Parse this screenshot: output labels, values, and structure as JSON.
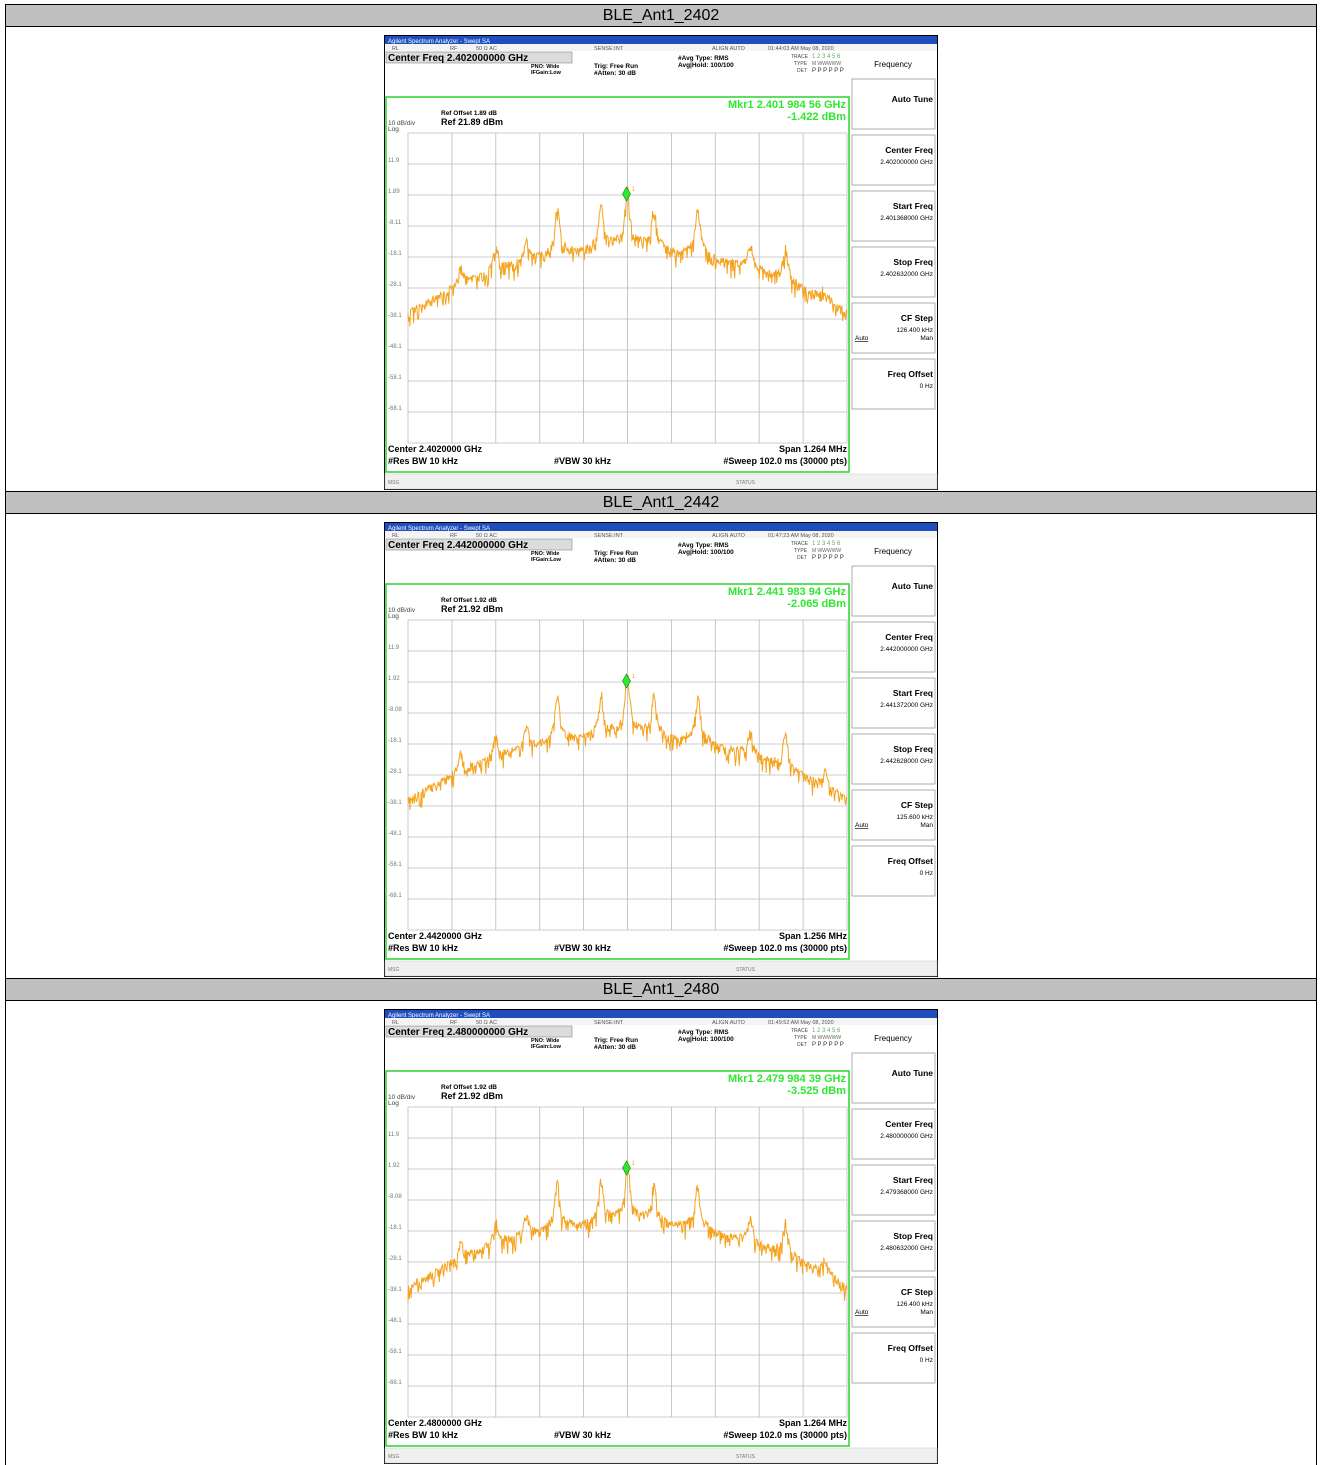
{
  "sections": [
    {
      "title": "BLE_Ant1_2402",
      "analyzer": {
        "window_title": "Agilent Spectrum Analyzer - Swept SA",
        "status_bar": [
          "RL",
          "RF",
          "50 Ω  AC",
          "SENSE:INT",
          "ALIGN AUTO",
          "01:44:03 AM May 08, 2020"
        ],
        "center_freq": "Center Freq 2.402000000 GHz",
        "pno": "PNO: Wide",
        "ifgain": "IFGain:Low",
        "trig": "Trig: Free Run",
        "atten": "#Atten: 30 dB",
        "avg_type": "#Avg Type: RMS",
        "avg_hold": "Avg|Hold: 100/100",
        "trace_label": "TRACE",
        "trace_nums": "1 2 3 4 5 6",
        "type_label": "TYPE",
        "type_val": "M WWWWW",
        "det_label": "DET",
        "det_val": "P P P P P P",
        "marker": "Mkr1 2.401 984 56 GHz",
        "marker_level": "-1.422 dBm",
        "marker_no": "1",
        "ref_offset": "Ref Offset 1.89 dB",
        "scale": "10 dB/div",
        "log": "Log",
        "ref": "Ref 21.89 dBm",
        "y_labels": [
          "11.9",
          "1.89",
          "-8.11",
          "-18.1",
          "-28.1",
          "-38.1",
          "-48.1",
          "-58.1",
          "-68.1"
        ],
        "center": "Center 2.4020000 GHz",
        "span": "Span 1.264 MHz",
        "rbw": "#Res BW 10 kHz",
        "vbw": "#VBW 30 kHz",
        "sweep": "#Sweep  102.0 ms (30000 pts)",
        "msg": "MSG",
        "status": "STATUS",
        "menu": "Frequency",
        "softkeys": [
          {
            "label": "Auto Tune"
          },
          {
            "label": "Center Freq",
            "value": "2.402000000 GHz"
          },
          {
            "label": "Start Freq",
            "value": "2.401368000 GHz"
          },
          {
            "label": "Stop Freq",
            "value": "2.402632000 GHz"
          },
          {
            "label": "CF Step",
            "value": "126.400 kHz",
            "options": [
              "Auto",
              "Man"
            ]
          },
          {
            "label": "Freq Offset",
            "value": "0 Hz"
          }
        ]
      }
    },
    {
      "title": "BLE_Ant1_2442",
      "analyzer": {
        "window_title": "Agilent Spectrum Analyzer - Swept SA",
        "status_bar": [
          "RL",
          "RF",
          "50 Ω  AC",
          "SENSE:INT",
          "ALIGN AUTO",
          "01:47:23 AM May 08, 2020"
        ],
        "center_freq": "Center Freq 2.442000000 GHz",
        "pno": "PNO: Wide",
        "ifgain": "IFGain:Low",
        "trig": "Trig: Free Run",
        "atten": "#Atten: 30 dB",
        "avg_type": "#Avg Type: RMS",
        "avg_hold": "Avg|Hold: 100/100",
        "trace_label": "TRACE",
        "trace_nums": "1 2 3 4 5 6",
        "type_label": "TYPE",
        "type_val": "M WWWWW",
        "det_label": "DET",
        "det_val": "P P P P P P",
        "marker": "Mkr1 2.441 983 94 GHz",
        "marker_level": "-2.065 dBm",
        "marker_no": "1",
        "ref_offset": "Ref Offset 1.92 dB",
        "scale": "10 dB/div",
        "log": "Log",
        "ref": "Ref 21.92 dBm",
        "y_labels": [
          "11.9",
          "1.92",
          "-8.08",
          "-18.1",
          "-28.1",
          "-38.1",
          "-48.1",
          "-58.1",
          "-68.1"
        ],
        "center": "Center 2.4420000 GHz",
        "span": "Span 1.256 MHz",
        "rbw": "#Res BW 10 kHz",
        "vbw": "#VBW 30 kHz",
        "sweep": "#Sweep  102.0 ms (30000 pts)",
        "msg": "MSG",
        "status": "STATUS",
        "menu": "Frequency",
        "softkeys": [
          {
            "label": "Auto Tune"
          },
          {
            "label": "Center Freq",
            "value": "2.442000000 GHz"
          },
          {
            "label": "Start Freq",
            "value": "2.441372000 GHz"
          },
          {
            "label": "Stop Freq",
            "value": "2.442628000 GHz"
          },
          {
            "label": "CF Step",
            "value": "125.600 kHz",
            "options": [
              "Auto",
              "Man"
            ]
          },
          {
            "label": "Freq Offset",
            "value": "0 Hz"
          }
        ]
      }
    },
    {
      "title": "BLE_Ant1_2480",
      "analyzer": {
        "window_title": "Agilent Spectrum Analyzer - Swept SA",
        "status_bar": [
          "RL",
          "RF",
          "50 Ω  AC",
          "SENSE:INT",
          "ALIGN AUTO",
          "01:49:52 AM May 08, 2020"
        ],
        "center_freq": "Center Freq 2.480000000 GHz",
        "pno": "PNO: Wide",
        "ifgain": "IFGain:Low",
        "trig": "Trig: Free Run",
        "atten": "#Atten: 30 dB",
        "avg_type": "#Avg Type: RMS",
        "avg_hold": "Avg|Hold: 100/100",
        "trace_label": "TRACE",
        "trace_nums": "1 2 3 4 5 6",
        "type_label": "TYPE",
        "type_val": "M WWWWW",
        "det_label": "DET",
        "det_val": "P P P P P P",
        "marker": "Mkr1 2.479 984 39 GHz",
        "marker_level": "-3.525 dBm",
        "marker_no": "1",
        "ref_offset": "Ref Offset 1.92 dB",
        "scale": "10 dB/div",
        "log": "Log",
        "ref": "Ref 21.92 dBm",
        "y_labels": [
          "11.9",
          "1.92",
          "-8.08",
          "-18.1",
          "-28.1",
          "-38.1",
          "-48.1",
          "-58.1",
          "-68.1"
        ],
        "center": "Center 2.4800000 GHz",
        "span": "Span 1.264 MHz",
        "rbw": "#Res BW 10 kHz",
        "vbw": "#VBW 30 kHz",
        "sweep": "#Sweep  102.0 ms (30000 pts)",
        "msg": "MSG",
        "status": "STATUS",
        "menu": "Frequency",
        "softkeys": [
          {
            "label": "Auto Tune"
          },
          {
            "label": "Center Freq",
            "value": "2.480000000 GHz"
          },
          {
            "label": "Start Freq",
            "value": "2.479368000 GHz"
          },
          {
            "label": "Stop Freq",
            "value": "2.480632000 GHz"
          },
          {
            "label": "CF Step",
            "value": "126.400 kHz",
            "options": [
              "Auto",
              "Man"
            ]
          },
          {
            "label": "Freq Offset",
            "value": "0 Hz"
          }
        ]
      }
    }
  ]
}
